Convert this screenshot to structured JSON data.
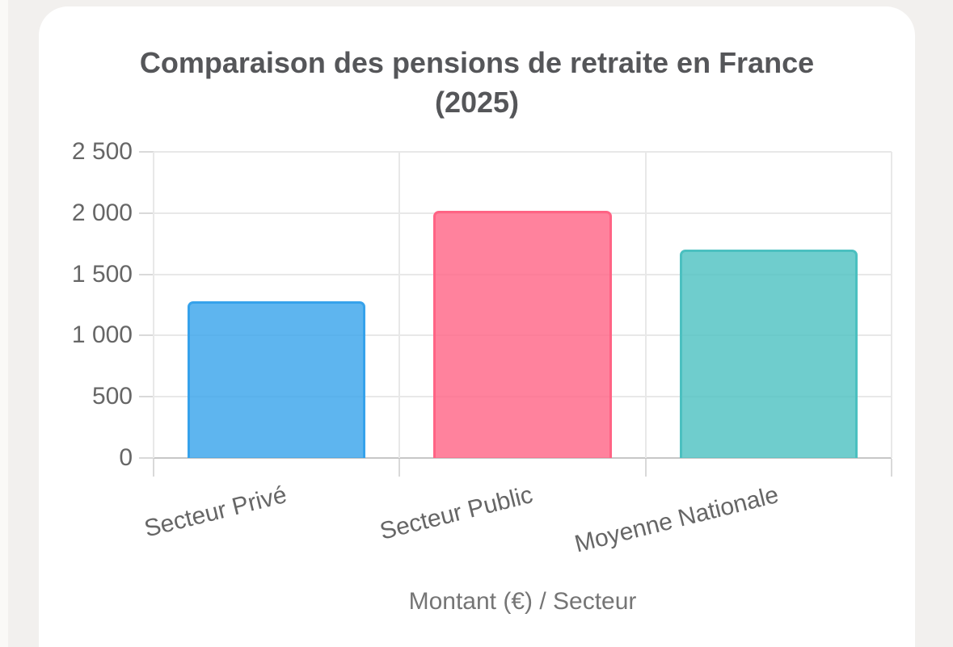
{
  "page": {
    "background_color": "#f2f0ee",
    "card_background_color": "#ffffff"
  },
  "title": "Comparaison des pensions de retraite en France (2025)",
  "chart_data": {
    "type": "bar",
    "title": "Comparaison des pensions de retraite en France (2025)",
    "categories": [
      "Secteur Privé",
      "Secteur Public",
      "Moyenne Nationale"
    ],
    "values": [
      1280,
      2020,
      1700
    ],
    "xlabel": "Montant (€) / Secteur",
    "ylabel": "",
    "ylim": [
      0,
      2500
    ],
    "ytick_step": 500,
    "ytick_labels": [
      "0",
      "500",
      "1 000",
      "1 500",
      "2 000",
      "2 500"
    ],
    "grid": true,
    "legend": "none",
    "x_label_rotation_deg": -14,
    "bar_fill_colors": [
      "rgba(54,162,235,0.8)",
      "rgba(255,99,132,0.8)",
      "rgba(75,192,192,0.8)"
    ],
    "bar_border_colors": [
      "#36A2EB",
      "#FF6384",
      "#4BC0C0"
    ]
  },
  "colors": {
    "title_text": "#555659",
    "tick_text": "#666666",
    "axis_title_text": "#757575",
    "gridline": "#e8e8e8",
    "zero_line": "#c7c7c7",
    "tick_mark": "#d9d9d9"
  }
}
